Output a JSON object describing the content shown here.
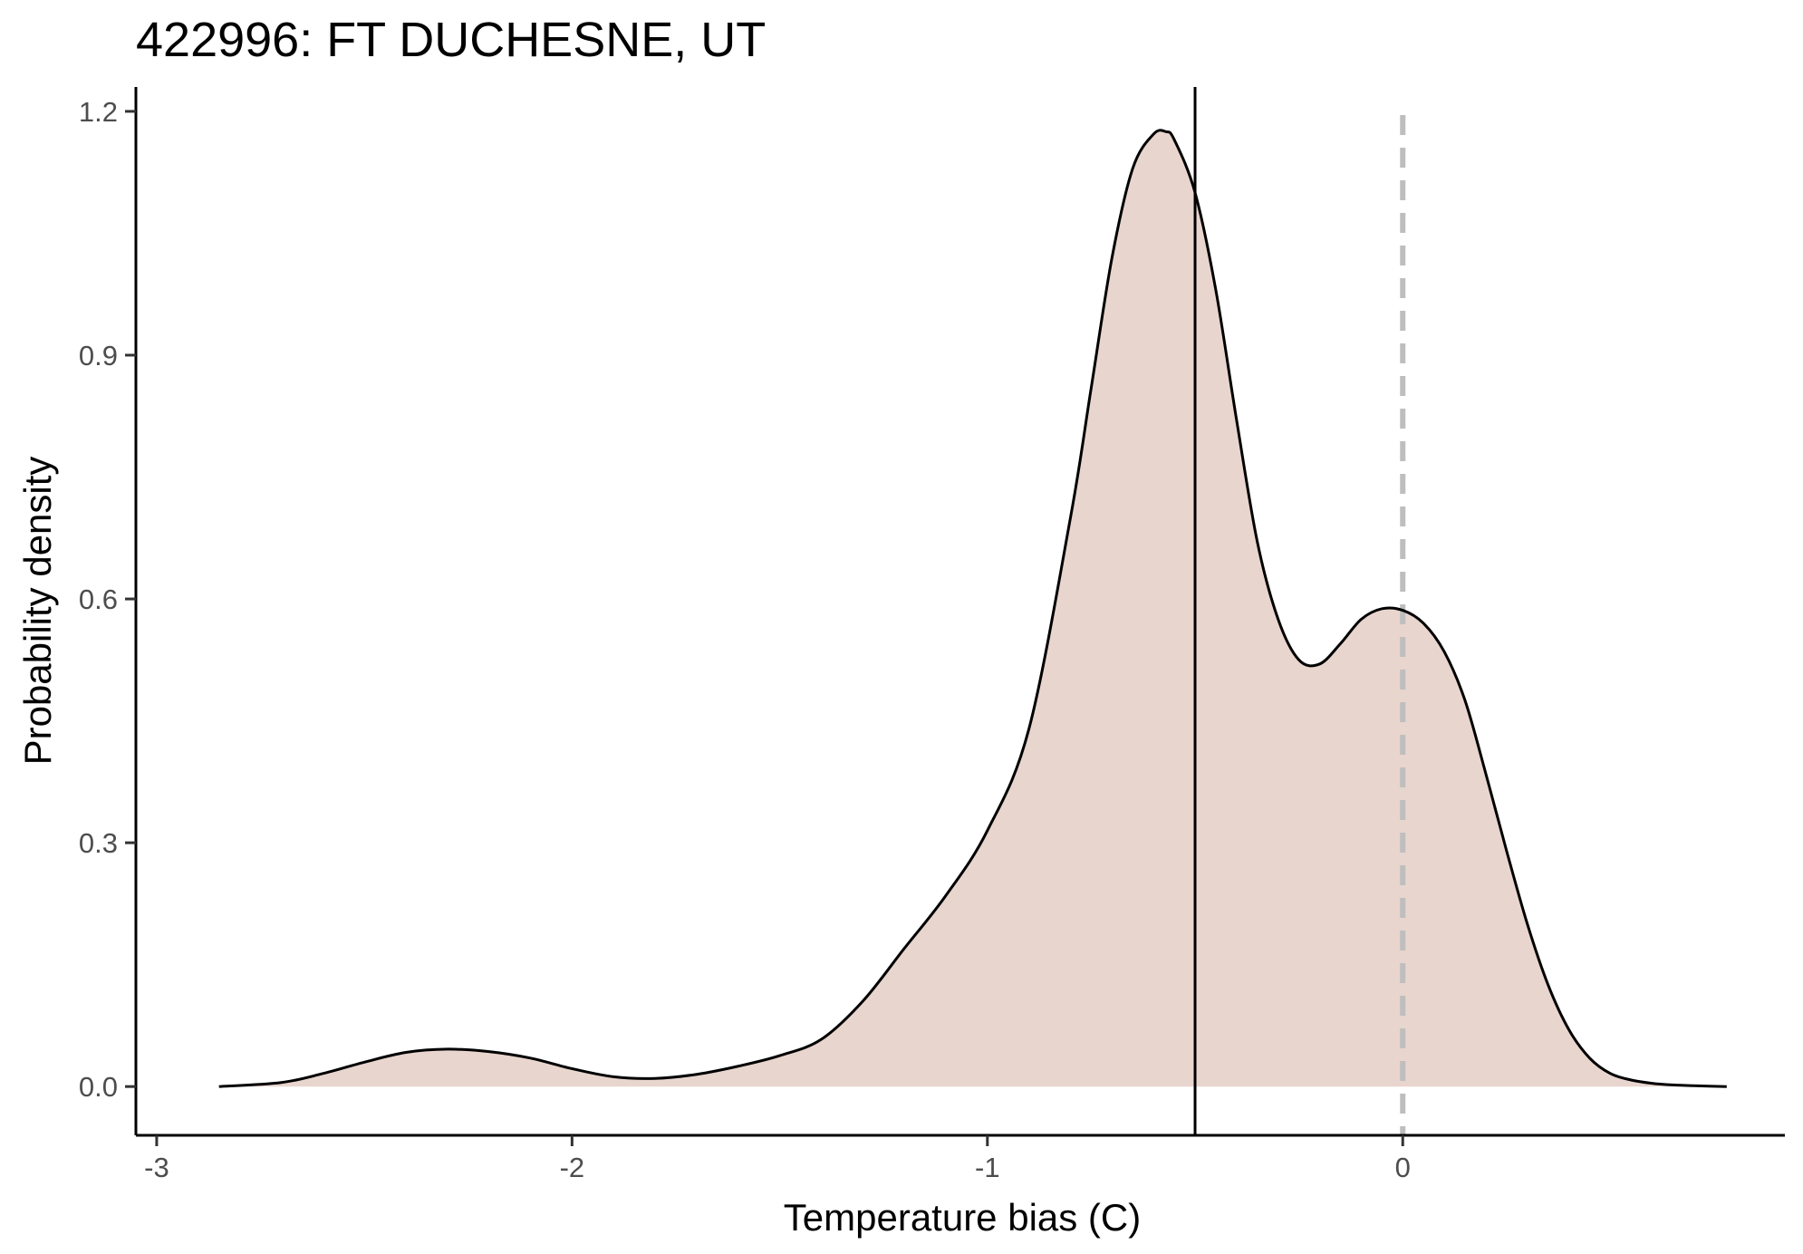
{
  "chart_data": {
    "type": "area",
    "title": "422996: FT DUCHESNE, UT",
    "xlabel": "Temperature bias (C)",
    "ylabel": "Probability density",
    "xlim": [
      -3.05,
      0.92
    ],
    "ylim": [
      -0.06,
      1.23
    ],
    "x_ticks": [
      -3,
      -2,
      -1,
      0
    ],
    "x_tick_labels": [
      "-3",
      "-2",
      "-1",
      "0"
    ],
    "y_ticks": [
      0.0,
      0.3,
      0.6,
      0.9,
      1.2
    ],
    "y_tick_labels": [
      "0.0",
      "0.3",
      "0.6",
      "0.9",
      "1.2"
    ],
    "grid": false,
    "legend": "none",
    "fill_color": "#e8d5ce",
    "line_color": "#000000",
    "reference_lines": [
      {
        "x": -0.5,
        "style": "solid",
        "color": "#000000"
      },
      {
        "x": 0.0,
        "style": "dashed",
        "color": "#bebebe"
      }
    ],
    "series": [
      {
        "x": [
          -2.85,
          -2.7,
          -2.6,
          -2.5,
          -2.4,
          -2.3,
          -2.2,
          -2.1,
          -2.0,
          -1.9,
          -1.8,
          -1.7,
          -1.6,
          -1.5,
          -1.4,
          -1.3,
          -1.2,
          -1.1,
          -1.0,
          -0.9,
          -0.8,
          -0.75,
          -0.7,
          -0.65,
          -0.6,
          -0.57,
          -0.55,
          -0.5,
          -0.45,
          -0.4,
          -0.35,
          -0.3,
          -0.25,
          -0.2,
          -0.15,
          -0.1,
          -0.05,
          0.0,
          0.05,
          0.1,
          0.15,
          0.2,
          0.25,
          0.3,
          0.35,
          0.4,
          0.45,
          0.5,
          0.55,
          0.6,
          0.65,
          0.7,
          0.78
        ],
        "y": [
          0.0,
          0.005,
          0.016,
          0.03,
          0.042,
          0.046,
          0.043,
          0.035,
          0.022,
          0.012,
          0.01,
          0.015,
          0.025,
          0.038,
          0.058,
          0.105,
          0.17,
          0.235,
          0.315,
          0.44,
          0.7,
          0.86,
          1.02,
          1.13,
          1.172,
          1.175,
          1.165,
          1.1,
          0.98,
          0.82,
          0.67,
          0.575,
          0.525,
          0.52,
          0.545,
          0.575,
          0.588,
          0.586,
          0.57,
          0.535,
          0.475,
          0.385,
          0.29,
          0.2,
          0.125,
          0.07,
          0.035,
          0.016,
          0.008,
          0.004,
          0.002,
          0.001,
          0.0
        ]
      }
    ]
  }
}
